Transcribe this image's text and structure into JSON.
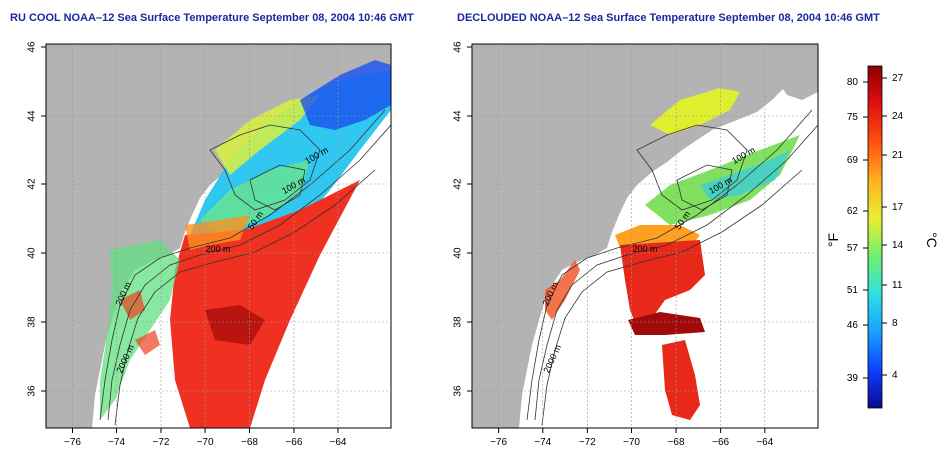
{
  "left_panel": {
    "title": "RU COOL NOAA–12 Sea Surface Temperature September 08, 2004 10:46 GMT"
  },
  "right_panel": {
    "title": "DECLOUDED NOAA–12 Sea Surface Temperature September 08, 2004 10:46 GMT"
  },
  "map": {
    "lat_ticks": [
      "46",
      "44",
      "42",
      "40",
      "38",
      "36"
    ],
    "lon_ticks": [
      "−76",
      "−74",
      "−72",
      "−70",
      "−68",
      "−66",
      "−64"
    ],
    "contour_labels": [
      "100 m",
      "100 m",
      "50 m",
      "200 m",
      "2000 m",
      "200 m"
    ],
    "land_color": "#b3b3b3",
    "ocean_color": "#ffffff"
  },
  "colorbar": {
    "fahrenheit_label": "°F",
    "celsius_label": "°C",
    "fahrenheit_ticks": [
      "80",
      "75",
      "69",
      "62",
      "57",
      "51",
      "46",
      "39"
    ],
    "celsius_ticks": [
      "27",
      "24",
      "21",
      "17",
      "14",
      "11",
      "8",
      "4"
    ],
    "colors": [
      "#0a0a8c",
      "#1040ff",
      "#18a0ff",
      "#30e0e0",
      "#70f070",
      "#e8f030",
      "#ffb020",
      "#ff5010",
      "#e01010",
      "#8c0000"
    ]
  }
}
